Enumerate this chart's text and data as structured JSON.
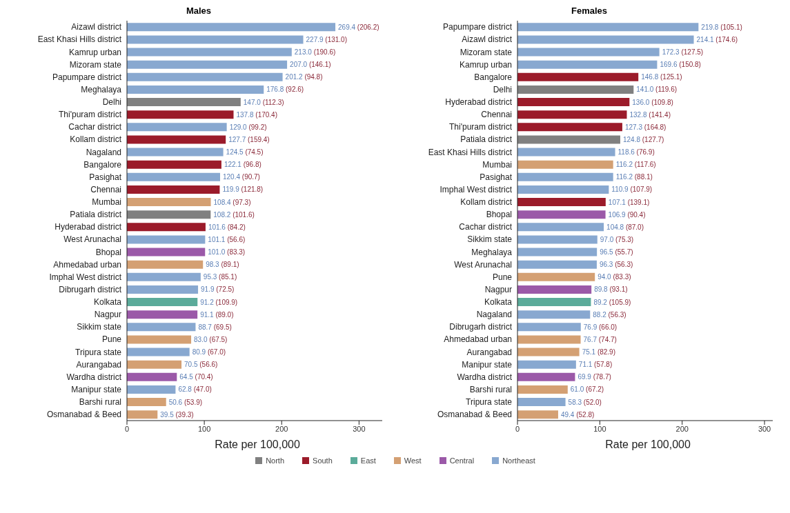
{
  "chart_data": [
    {
      "type": "bar",
      "title": "Males",
      "xlabel": "Rate per 100,000",
      "orientation": "horizontal",
      "stacked": true,
      "legend": "bottom",
      "xlim": [
        0,
        330
      ],
      "xticks": [
        0,
        100,
        200,
        300
      ],
      "categories": [
        "Aizawl district",
        "East Khasi Hills district",
        "Kamrup urban",
        "Mizoram state",
        "Papumpare district",
        "Meghalaya",
        "Delhi",
        "Thi'puram district",
        "Cachar district",
        "Kollam district",
        "Nagaland",
        "Bangalore",
        "Pasighat",
        "Chennai",
        "Mumbai",
        "Patiala district",
        "Hyderabad district",
        "West Arunachal",
        "Bhopal",
        "Ahmedabad urban",
        "Imphal West district",
        "Dibrugarh district",
        "Kolkata",
        "Nagpur",
        "Sikkim state",
        "Pune",
        "Tripura state",
        "Aurangabad",
        "Wardha district",
        "Manipur state",
        "Barshi rural",
        "Osmanabad & Beed"
      ],
      "series": [
        {
          "name": "North",
          "color": "#808080",
          "values": [
            null,
            null,
            null,
            null,
            null,
            null,
            147.0,
            null,
            null,
            null,
            null,
            null,
            null,
            null,
            null,
            108.2,
            null,
            null,
            null,
            null,
            null,
            null,
            null,
            null,
            null,
            null,
            null,
            null,
            null,
            null,
            null,
            null
          ],
          "value_labels": [
            null,
            null,
            null,
            null,
            null,
            null,
            "147.0 (112.3)",
            null,
            null,
            null,
            null,
            null,
            null,
            null,
            null,
            "108.2 (101.6)",
            null,
            null,
            null,
            null,
            null,
            null,
            null,
            null,
            null,
            null,
            null,
            null,
            null,
            null,
            null,
            null
          ]
        },
        {
          "name": "South",
          "color": "#9b1b2a",
          "values": [
            null,
            null,
            null,
            null,
            null,
            null,
            null,
            137.8,
            null,
            127.7,
            null,
            122.1,
            null,
            119.9,
            null,
            null,
            101.6,
            null,
            null,
            null,
            null,
            null,
            null,
            null,
            null,
            null,
            null,
            null,
            null,
            null,
            null,
            null
          ],
          "value_labels": [
            null,
            null,
            null,
            null,
            null,
            null,
            null,
            "137.8 (170.4)",
            null,
            "127.7 (159.4)",
            null,
            "122.1 (96.8)",
            null,
            "119.9 (121.8)",
            null,
            null,
            "101.6 (84.2)",
            null,
            null,
            null,
            null,
            null,
            null,
            null,
            null,
            null,
            null,
            null,
            null,
            null,
            null,
            null
          ]
        },
        {
          "name": "East",
          "color": "#5bab9a",
          "values": [
            null,
            null,
            null,
            null,
            null,
            null,
            null,
            null,
            null,
            null,
            null,
            null,
            null,
            null,
            null,
            null,
            null,
            null,
            null,
            null,
            null,
            null,
            91.2,
            null,
            null,
            null,
            null,
            null,
            null,
            null,
            null,
            null
          ],
          "value_labels": [
            null,
            null,
            null,
            null,
            null,
            null,
            null,
            null,
            null,
            null,
            null,
            null,
            null,
            null,
            null,
            null,
            null,
            null,
            null,
            null,
            null,
            null,
            "91.2 (109.9)",
            null,
            null,
            null,
            null,
            null,
            null,
            null,
            null,
            null
          ]
        },
        {
          "name": "West",
          "color": "#d4a073",
          "values": [
            null,
            null,
            null,
            null,
            null,
            null,
            null,
            null,
            null,
            null,
            null,
            null,
            null,
            null,
            108.4,
            null,
            null,
            null,
            null,
            98.3,
            null,
            null,
            null,
            null,
            null,
            83.0,
            null,
            70.5,
            null,
            null,
            50.6,
            39.5
          ],
          "value_labels": [
            null,
            null,
            null,
            null,
            null,
            null,
            null,
            null,
            null,
            null,
            null,
            null,
            null,
            null,
            "108.4 (97.3)",
            null,
            null,
            null,
            null,
            "98.3 (89.1)",
            null,
            null,
            null,
            null,
            null,
            "83.0 (67.5)",
            null,
            "70.5 (56.6)",
            null,
            null,
            "50.6 (53.9)",
            "39.5 (39.3)"
          ]
        },
        {
          "name": "Central",
          "color": "#9b59a8",
          "values": [
            null,
            null,
            null,
            null,
            null,
            null,
            null,
            null,
            null,
            null,
            null,
            null,
            null,
            null,
            null,
            null,
            null,
            null,
            101.0,
            null,
            null,
            null,
            null,
            91.1,
            null,
            null,
            null,
            null,
            64.5,
            null,
            null,
            null
          ],
          "value_labels": [
            null,
            null,
            null,
            null,
            null,
            null,
            null,
            null,
            null,
            null,
            null,
            null,
            null,
            null,
            null,
            null,
            null,
            null,
            "101.0 (83.3)",
            null,
            null,
            null,
            null,
            "91.1 (89.0)",
            null,
            null,
            null,
            null,
            "64.5 (70.4)",
            null,
            null,
            null
          ]
        },
        {
          "name": "Northeast",
          "color": "#88a8d0",
          "values": [
            269.4,
            227.9,
            213.0,
            207.0,
            201.2,
            176.8,
            null,
            null,
            129.0,
            null,
            124.5,
            null,
            120.4,
            null,
            null,
            null,
            null,
            101.1,
            null,
            null,
            95.3,
            91.9,
            null,
            null,
            88.7,
            null,
            80.9,
            null,
            null,
            62.8,
            null,
            null
          ],
          "value_labels": [
            "269.4 (206.2)",
            "227.9 (131.0)",
            "213.0 (190.6)",
            "207.0 (146.1)",
            "201.2 (94.8)",
            "176.8 (92.6)",
            null,
            null,
            "129.0 (99.2)",
            null,
            "124.5 (74.5)",
            null,
            "120.4 (90.7)",
            null,
            null,
            null,
            null,
            "101.1 (56.6)",
            null,
            null,
            "95.3 (85.1)",
            "91.9 (72.5)",
            null,
            null,
            "88.7 (69.5)",
            null,
            "80.9 (67.0)",
            null,
            null,
            "62.8 (47.0)",
            null,
            null
          ]
        }
      ]
    },
    {
      "type": "bar",
      "title": "Females",
      "xlabel": "Rate per 100,000",
      "orientation": "horizontal",
      "stacked": true,
      "xlim": [
        0,
        310
      ],
      "xticks": [
        0,
        100,
        200,
        300
      ],
      "categories": [
        "Papumpare district",
        "Aizawl district",
        "Mizoram state",
        "Kamrup urban",
        "Bangalore",
        "Delhi",
        "Hyderabad district",
        "Chennai",
        "Thi'puram district",
        "Patiala district",
        "East Khasi Hills district",
        "Mumbai",
        "Pasighat",
        "Imphal West district",
        "Kollam district",
        "Bhopal",
        "Cachar district",
        "Sikkim state",
        "Meghalaya",
        "West Arunachal",
        "Pune",
        "Nagpur",
        "Kolkata",
        "Nagaland",
        "Dibrugarh district",
        "Ahmedabad urban",
        "Aurangabad",
        "Manipur state",
        "Wardha district",
        "Barshi rural",
        "Tripura state",
        "Osmanabad & Beed"
      ],
      "series": [
        {
          "color": "#808080",
          "values": [
            null,
            null,
            null,
            null,
            null,
            141.0,
            null,
            null,
            null,
            124.8,
            null,
            null,
            null,
            null,
            null,
            null,
            null,
            null,
            null,
            null,
            null,
            null,
            null,
            null,
            null,
            null,
            null,
            null,
            null,
            null,
            null,
            null
          ],
          "value_labels": [
            null,
            null,
            null,
            null,
            null,
            "141.0 (119.6)",
            null,
            null,
            null,
            "124.8 (127.7)",
            null,
            null,
            null,
            null,
            null,
            null,
            null,
            null,
            null,
            null,
            null,
            null,
            null,
            null,
            null,
            null,
            null,
            null,
            null,
            null,
            null,
            null
          ]
        },
        {
          "color": "#9b1b2a",
          "values": [
            null,
            null,
            null,
            null,
            146.8,
            null,
            136.0,
            132.8,
            127.3,
            null,
            null,
            null,
            null,
            null,
            107.1,
            null,
            null,
            null,
            null,
            null,
            null,
            null,
            null,
            null,
            null,
            null,
            null,
            null,
            null,
            null,
            null,
            null
          ],
          "value_labels": [
            null,
            null,
            null,
            null,
            "146.8 (125.1)",
            null,
            "136.0 (109.8)",
            "132.8 (141.4)",
            "127.3 (164.8)",
            null,
            null,
            null,
            null,
            null,
            "107.1 (139.1)",
            null,
            null,
            null,
            null,
            null,
            null,
            null,
            null,
            null,
            null,
            null,
            null,
            null,
            null,
            null,
            null,
            null
          ]
        },
        {
          "color": "#5bab9a",
          "values": [
            null,
            null,
            null,
            null,
            null,
            null,
            null,
            null,
            null,
            null,
            null,
            null,
            null,
            null,
            null,
            null,
            null,
            null,
            null,
            null,
            null,
            null,
            89.2,
            null,
            null,
            null,
            null,
            null,
            null,
            null,
            null,
            null
          ],
          "value_labels": [
            null,
            null,
            null,
            null,
            null,
            null,
            null,
            null,
            null,
            null,
            null,
            null,
            null,
            null,
            null,
            null,
            null,
            null,
            null,
            null,
            null,
            null,
            "89.2 (105.9)",
            null,
            null,
            null,
            null,
            null,
            null,
            null,
            null,
            null
          ]
        },
        {
          "color": "#d4a073",
          "values": [
            null,
            null,
            null,
            null,
            null,
            null,
            null,
            null,
            null,
            null,
            null,
            116.2,
            null,
            null,
            null,
            null,
            null,
            null,
            null,
            null,
            94.0,
            null,
            null,
            null,
            null,
            76.7,
            75.1,
            null,
            null,
            61.0,
            null,
            49.4
          ],
          "value_labels": [
            null,
            null,
            null,
            null,
            null,
            null,
            null,
            null,
            null,
            null,
            null,
            "116.2 (117.6)",
            null,
            null,
            null,
            null,
            null,
            null,
            null,
            null,
            "94.0 (83.3)",
            null,
            null,
            null,
            null,
            "76.7 (74.7)",
            "75.1 (82.9)",
            null,
            null,
            "61.0 (67.2)",
            null,
            "49.4 (52.8)"
          ]
        },
        {
          "color": "#9b59a8",
          "values": [
            null,
            null,
            null,
            null,
            null,
            null,
            null,
            null,
            null,
            null,
            null,
            null,
            null,
            null,
            null,
            106.9,
            null,
            null,
            null,
            null,
            null,
            89.8,
            null,
            null,
            null,
            null,
            null,
            null,
            69.9,
            null,
            null,
            null
          ],
          "value_labels": [
            null,
            null,
            null,
            null,
            null,
            null,
            null,
            null,
            null,
            null,
            null,
            null,
            null,
            null,
            null,
            "106.9 (90.4)",
            null,
            null,
            null,
            null,
            null,
            "89.8 (93.1)",
            null,
            null,
            null,
            null,
            null,
            null,
            "69.9 (78.7)",
            null,
            null,
            null
          ]
        },
        {
          "color": "#88a8d0",
          "values": [
            219.8,
            214.1,
            172.3,
            169.6,
            null,
            null,
            null,
            null,
            null,
            null,
            118.6,
            null,
            116.2,
            110.9,
            null,
            null,
            104.8,
            97.0,
            96.5,
            96.3,
            null,
            null,
            null,
            88.2,
            76.9,
            null,
            null,
            71.1,
            null,
            null,
            58.3,
            null
          ],
          "value_labels": [
            "219.8 (105.1)",
            "214.1 (174.6)",
            "172.3 (127.5)",
            "169.6 (150.8)",
            null,
            null,
            null,
            null,
            null,
            null,
            "118.6 (76.9)",
            null,
            "116.2 (88.1)",
            "110.9 (107.9)",
            null,
            null,
            "104.8 (87.0)",
            "97.0 (75.3)",
            "96.5 (55.7)",
            "96.3 (56.3)",
            null,
            null,
            null,
            "88.2 (56.3)",
            "76.9 (66.0)",
            null,
            null,
            "71.1 (57.8)",
            null,
            null,
            "58.3 (52.0)",
            null
          ]
        }
      ]
    }
  ]
}
